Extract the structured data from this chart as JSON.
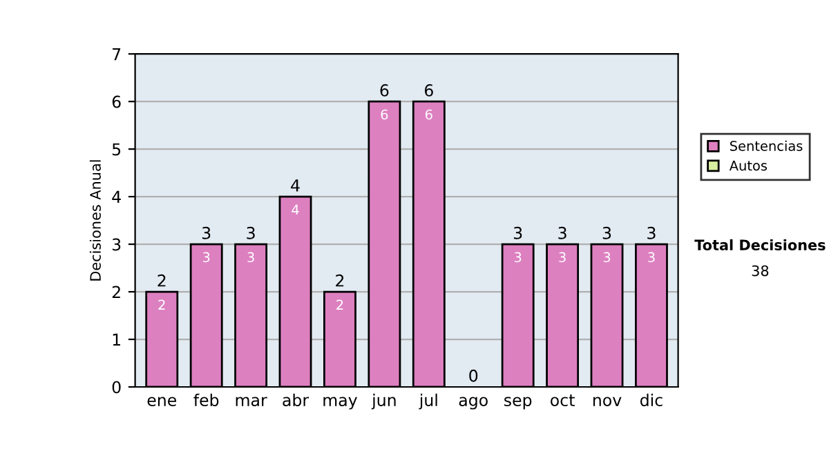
{
  "chart_data": {
    "type": "bar",
    "stacked": true,
    "ylabel": "Decisiones Anual",
    "categories": [
      "ene",
      "feb",
      "mar",
      "abr",
      "may",
      "jun",
      "jul",
      "ago",
      "sep",
      "oct",
      "nov",
      "dic"
    ],
    "series": [
      {
        "name": "Sentencias",
        "color": "#dd80c0",
        "values": [
          2,
          3,
          3,
          4,
          2,
          6,
          6,
          0,
          3,
          3,
          3,
          3
        ],
        "value_labels": [
          "2",
          "3",
          "3",
          "4",
          "2",
          "6",
          "6",
          null,
          "3",
          "3",
          "3",
          "3"
        ]
      },
      {
        "name": "Autos",
        "color": "#d8eea0",
        "values": [
          0,
          0,
          0,
          0,
          0,
          0,
          0,
          0,
          0,
          0,
          0,
          0
        ]
      }
    ],
    "totals": [
      "2",
      "3",
      "3",
      "4",
      "2",
      "6",
      "6",
      "0",
      "3",
      "3",
      "3",
      "3"
    ],
    "ylim": [
      0,
      7
    ],
    "yticks": [
      0,
      1,
      2,
      3,
      4,
      5,
      6,
      7
    ],
    "grid": "y",
    "legend": "right",
    "annotations": [
      "Total Decisiones",
      "38"
    ]
  }
}
